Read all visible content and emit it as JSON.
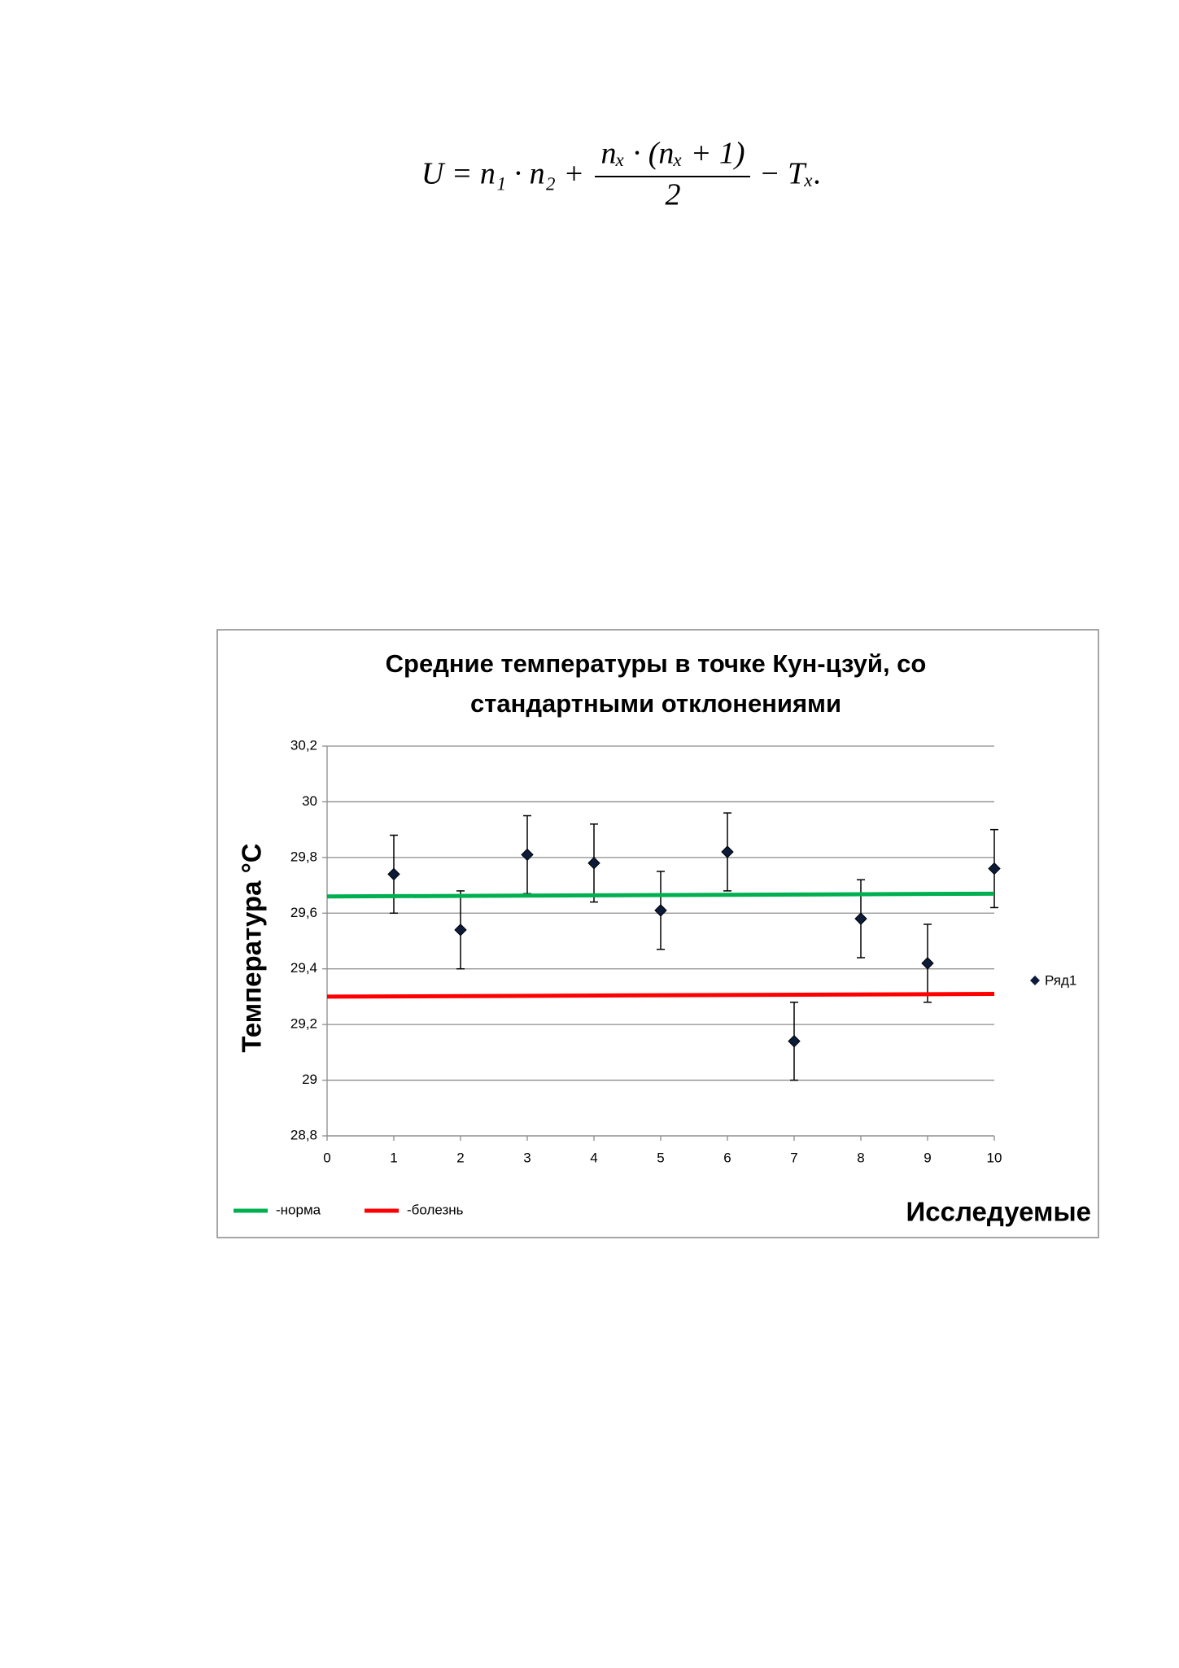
{
  "formula": {
    "start": "U = n₁ · n₂ +",
    "numerator": "nₓ · (nₓ + 1)",
    "denominator": "2",
    "end": "− Tₓ."
  },
  "chart_data": {
    "type": "scatter",
    "title": "Средние температуры в точке Кун-цзуй, со",
    "subtitle": "стандартными отклонениями",
    "x_label": "Исследуемые",
    "y_label": "Температура °C",
    "xlim": [
      0,
      10
    ],
    "xticks": [
      0,
      1,
      2,
      3,
      4,
      5,
      6,
      7,
      8,
      9,
      10
    ],
    "ylim": [
      28.8,
      30.2
    ],
    "yticks": [
      {
        "value": 28.8,
        "label": "28,8"
      },
      29,
      {
        "value": 29.2,
        "label": "29,2"
      },
      {
        "value": 29.4,
        "label": "29,4"
      },
      {
        "value": 29.6,
        "label": "29,6"
      },
      {
        "value": 29.8,
        "label": "29,8"
      },
      30,
      {
        "value": 30.2,
        "label": "30,2"
      }
    ],
    "grid": true,
    "series": [
      {
        "name": "Ряд1",
        "mode": "markers",
        "color": "#000000",
        "x": [
          1,
          2,
          3,
          4,
          5,
          6,
          7,
          8,
          9,
          10
        ],
        "values": [
          29.74,
          29.54,
          29.81,
          29.78,
          29.61,
          29.82,
          29.14,
          29.58,
          29.42,
          29.76
        ],
        "errors": [
          0.14,
          0.14,
          0.14,
          0.14,
          0.14,
          0.14,
          0.14,
          0.14,
          0.14,
          0.14
        ]
      },
      {
        "name": "-норма",
        "mode": "lines",
        "color": "#00b050",
        "x": [
          0,
          10
        ],
        "values": [
          29.66,
          29.67
        ]
      },
      {
        "name": "-болезнь",
        "mode": "lines",
        "color": "#ff0000",
        "x": [
          0,
          10
        ],
        "values": [
          29.3,
          29.31
        ]
      }
    ]
  }
}
